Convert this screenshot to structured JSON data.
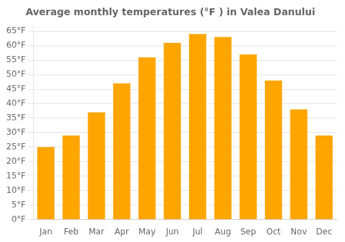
{
  "chart_data": {
    "type": "bar",
    "title": "Average monthly temperatures (°F ) in Valea Danului",
    "categories": [
      "Jan",
      "Feb",
      "Mar",
      "Apr",
      "May",
      "Jun",
      "Jul",
      "Aug",
      "Sep",
      "Oct",
      "Nov",
      "Dec"
    ],
    "values": [
      25,
      29,
      37,
      47,
      56,
      61,
      64,
      63,
      57,
      48,
      38,
      29
    ],
    "color": "#FFA500",
    "ylim": [
      0,
      67
    ],
    "yticks": [
      {
        "value": 0,
        "label": "0°F"
      },
      {
        "value": 5,
        "label": "5°F"
      },
      {
        "value": 10,
        "label": "10°F"
      },
      {
        "value": 15,
        "label": "15°F"
      },
      {
        "value": 20,
        "label": "20°F"
      },
      {
        "value": 25,
        "label": "25°F"
      },
      {
        "value": 30,
        "label": "30°F"
      },
      {
        "value": 35,
        "label": "35°F"
      },
      {
        "value": 40,
        "label": "40°F"
      },
      {
        "value": 45,
        "label": "45°F"
      },
      {
        "value": 50,
        "label": "50°F"
      },
      {
        "value": 55,
        "label": "55°F"
      },
      {
        "value": 60,
        "label": "60°F"
      },
      {
        "value": 65,
        "label": "65°F"
      }
    ],
    "grid": true
  }
}
